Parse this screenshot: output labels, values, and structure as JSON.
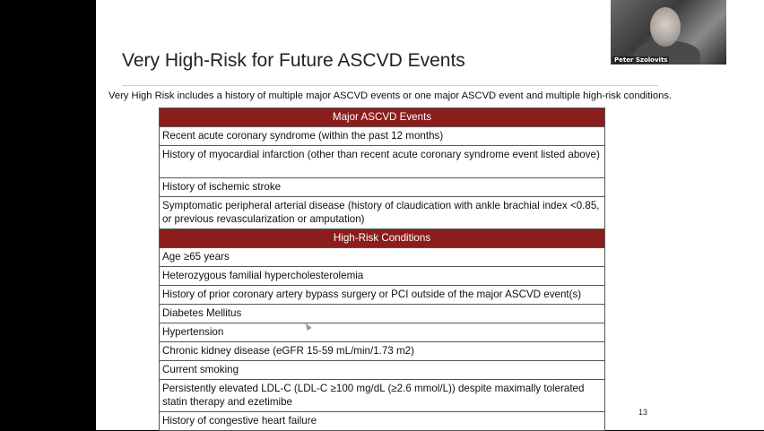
{
  "slide": {
    "title": "Very High-Risk for Future ASCVD Events",
    "subtitle": "Very High Risk includes a history of multiple major ASCVD events or one major ASCVD event and multiple high-risk conditions.",
    "page_number": "13",
    "header_color": "#8c1d1d"
  },
  "table": {
    "major_header": "Major ASCVD Events",
    "major_items": [
      "Recent acute coronary syndrome (within the past 12 months)",
      "History of myocardial infarction (other than recent acute coronary syndrome event listed above)",
      "History of ischemic stroke",
      "Symptomatic peripheral arterial disease (history of claudication with ankle brachial index <0.85, or previous revascularization or amputation)"
    ],
    "conditions_header": "High-Risk Conditions",
    "condition_items": [
      "Age ≥65 years",
      "Heterozygous familial hypercholesterolemia",
      "History of prior coronary artery bypass surgery or PCI outside of the major ASCVD event(s)",
      "Diabetes Mellitus",
      "Hypertension",
      "Chronic kidney disease (eGFR 15-59 mL/min/1.73 m2)",
      "Current smoking",
      "Persistently elevated LDL-C (LDL-C ≥100 mg/dL (≥2.6 mmol/L)) despite maximally tolerated statin therapy and ezetimibe",
      "History of congestive heart failure"
    ]
  },
  "webcam": {
    "participant_name": "Peter Szolovits"
  }
}
